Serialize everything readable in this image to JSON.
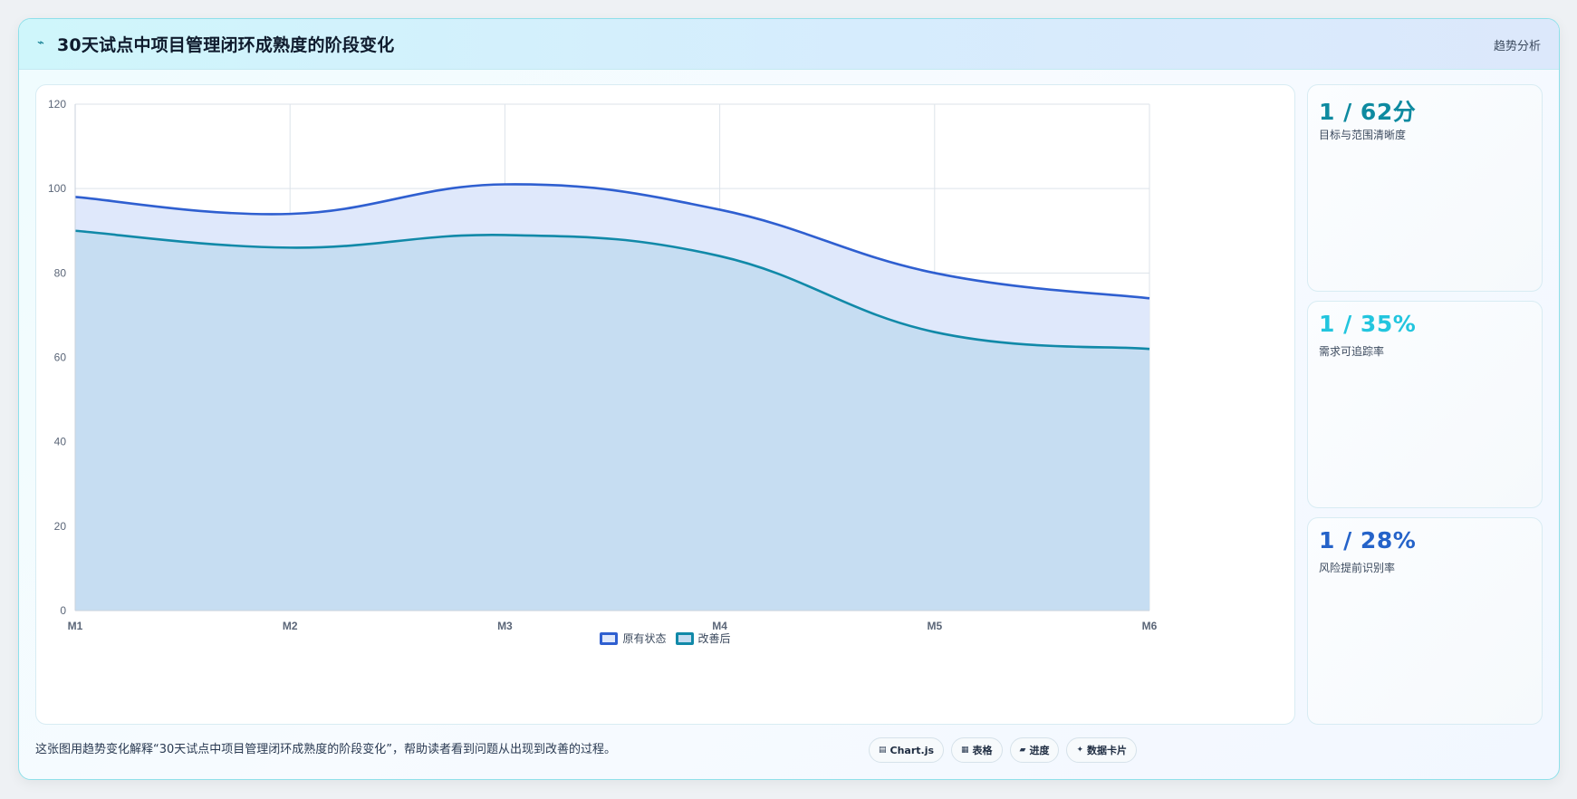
{
  "header": {
    "icon": "⌁",
    "title": "30天试点中项目管理闭环成熟度的阶段变化",
    "tag": "趋势分析"
  },
  "kpis": [
    {
      "value": "1 / 62分",
      "label": "目标与范围清晰度",
      "color": "#0e8aa0"
    },
    {
      "value": "1 / 35%",
      "label": "需求可追踪率",
      "color": "#22c5de"
    },
    {
      "value": "1 / 28%",
      "label": "风险提前识别率",
      "color": "#2563c9"
    }
  ],
  "footer": {
    "note": "这张图用趋势变化解释“30天试点中项目管理闭环成熟度的阶段变化”，帮助读者看到问题从出现到改善的过程。"
  },
  "pills": [
    {
      "icon": "chart-icon",
      "glyph": "▤",
      "label": "Chart.js"
    },
    {
      "icon": "table-icon",
      "glyph": "▦",
      "label": "表格"
    },
    {
      "icon": "progress-icon",
      "glyph": "▰",
      "label": "进度"
    },
    {
      "icon": "card-icon",
      "glyph": "✦",
      "label": "数据卡片"
    }
  ],
  "chart_data": {
    "type": "area",
    "categories": [
      "M1",
      "M2",
      "M3",
      "M4",
      "M5",
      "M6"
    ],
    "series": [
      {
        "name": "原有状态",
        "values": [
          98,
          94,
          101,
          95,
          80,
          74
        ],
        "stroke": "#2f5fd0",
        "fill": "#dfe8fb"
      },
      {
        "name": "改善后",
        "values": [
          90,
          86,
          89,
          84,
          66,
          62
        ],
        "stroke": "#1189a8",
        "fill": "#c4dcf1"
      }
    ],
    "ylim": [
      0,
      120
    ],
    "yticks": [
      0,
      20,
      40,
      60,
      80,
      100,
      120
    ],
    "grid": true,
    "legend": "bottom-center"
  }
}
